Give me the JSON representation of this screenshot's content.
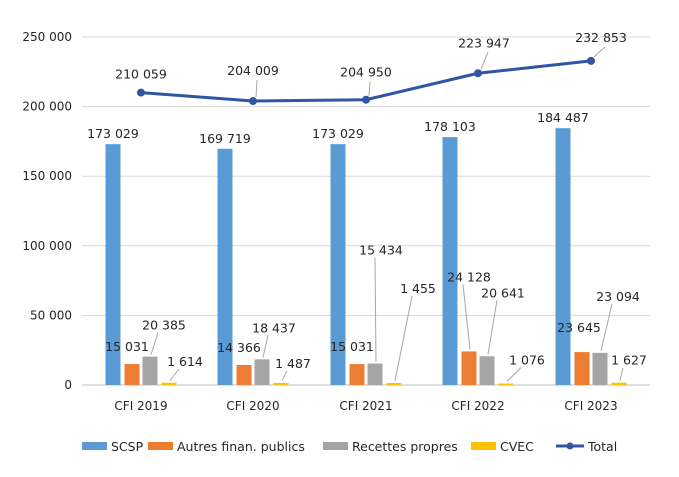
{
  "chart_data": {
    "type": "bar",
    "title": "",
    "xlabel": "",
    "ylabel": "",
    "categories": [
      "CFI 2019",
      "CFI 2020",
      "CFI 2021",
      "CFI 2022",
      "CFI 2023"
    ],
    "ylim": [
      0,
      250000
    ],
    "yticks": [
      0,
      50000,
      100000,
      150000,
      200000,
      250000
    ],
    "ytick_labels": [
      "0",
      "50 000",
      "100 000",
      "150 000",
      "200 000",
      "250 000"
    ],
    "grid": "horizontal",
    "legend_position": "bottom",
    "series": [
      {
        "name": "SCSP",
        "kind": "bar",
        "color": "#5B9BD5",
        "values": [
          173029,
          169719,
          173029,
          178103,
          184487
        ],
        "labels": [
          "173 029",
          "169 719",
          "173 029",
          "178 103",
          "184 487"
        ]
      },
      {
        "name": "Autres finan. publics",
        "kind": "bar",
        "color": "#ED7D31",
        "values": [
          15031,
          14366,
          15031,
          24128,
          23645
        ],
        "labels": [
          "15 031",
          "14 366",
          "15 031",
          "24 128",
          "23 645"
        ]
      },
      {
        "name": "Recettes propres",
        "kind": "bar",
        "color": "#A5A5A5",
        "values": [
          20385,
          18437,
          15434,
          20641,
          23094
        ],
        "labels": [
          "20 385",
          "18 437",
          "15 434",
          "20 641",
          "23 094"
        ]
      },
      {
        "name": "CVEC",
        "kind": "bar",
        "color": "#FFC000",
        "values": [
          1614,
          1487,
          1455,
          1076,
          1627
        ],
        "labels": [
          "1 614",
          "1 487",
          "1 455",
          "1 076",
          "1 627"
        ]
      },
      {
        "name": "Total",
        "kind": "line",
        "color": "#2F55A4",
        "values": [
          210059,
          204009,
          204950,
          223947,
          232853
        ],
        "labels": [
          "210 059",
          "204 009",
          "204 950",
          "223 947",
          "232 853"
        ]
      }
    ]
  }
}
